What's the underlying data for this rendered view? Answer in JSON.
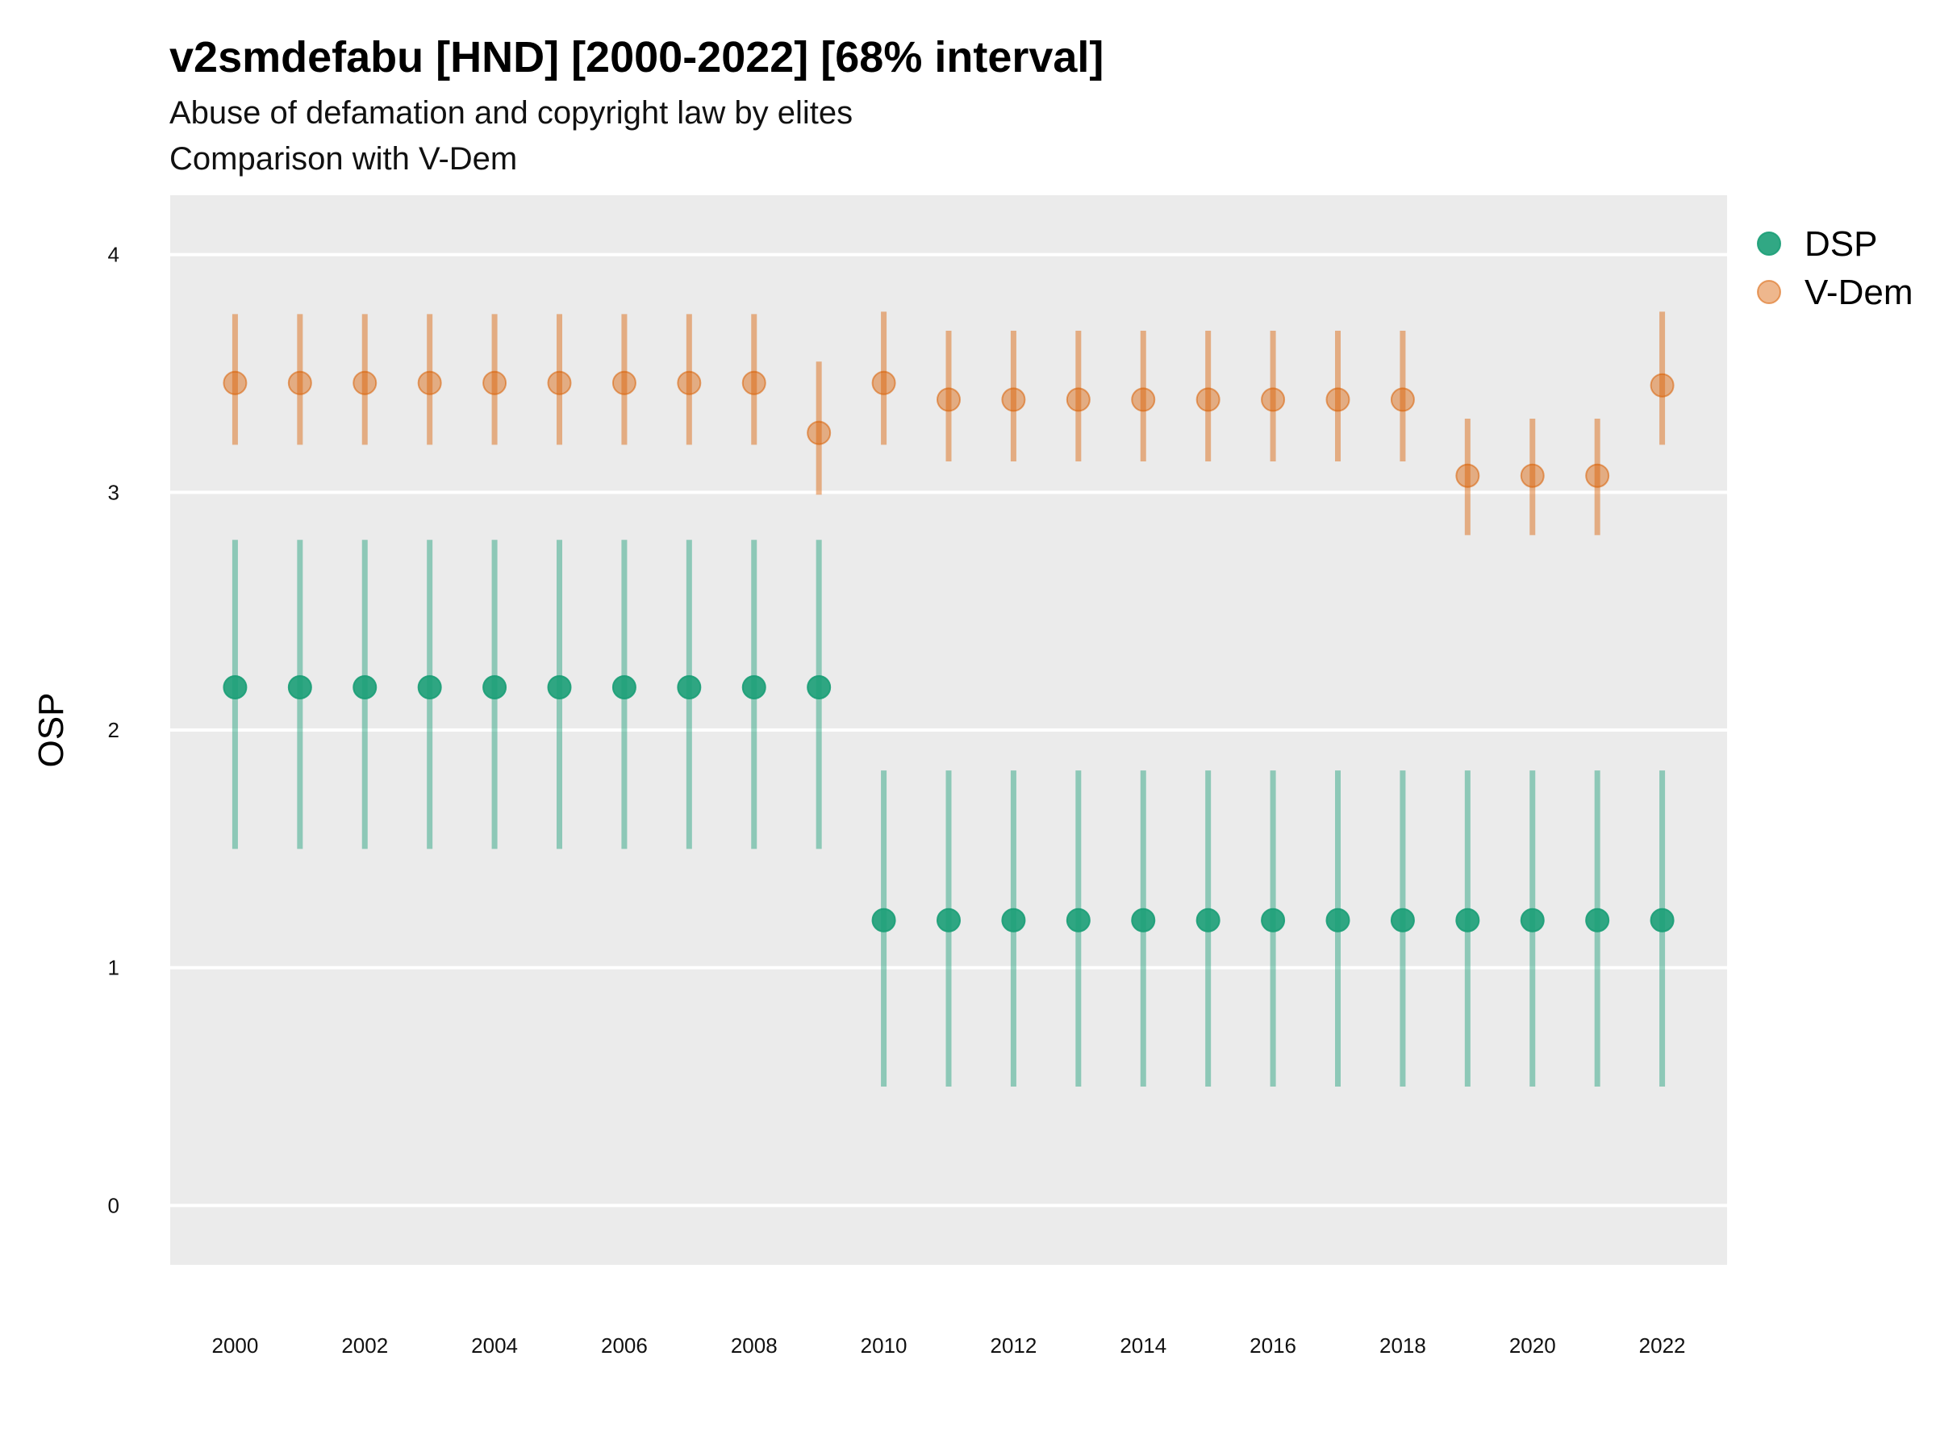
{
  "title": "v2smdefabu [HND] [2000-2022] [68% interval]",
  "subtitle_line1": "Abuse of defamation and copyright law by elites",
  "subtitle_line2": "Comparison with V-Dem",
  "chart_data": {
    "type": "scatter",
    "ylabel": "OSP",
    "xlabel": "",
    "ylim": [
      -0.25,
      4.25
    ],
    "yticks": [
      0,
      1,
      2,
      3,
      4
    ],
    "xticks": [
      2000,
      2002,
      2004,
      2006,
      2008,
      2010,
      2012,
      2014,
      2016,
      2018,
      2020,
      2022
    ],
    "x": [
      2000,
      2001,
      2002,
      2003,
      2004,
      2005,
      2006,
      2007,
      2008,
      2009,
      2010,
      2011,
      2012,
      2013,
      2014,
      2015,
      2016,
      2017,
      2018,
      2019,
      2020,
      2021,
      2022
    ],
    "legend_position": "right",
    "grid": true,
    "series": [
      {
        "name": "DSP",
        "color": "#1b9e77",
        "values": [
          2.18,
          2.18,
          2.18,
          2.18,
          2.18,
          2.18,
          2.18,
          2.18,
          2.18,
          2.18,
          1.2,
          1.2,
          1.2,
          1.2,
          1.2,
          1.2,
          1.2,
          1.2,
          1.2,
          1.2,
          1.2,
          1.2,
          1.2
        ],
        "lower": [
          1.5,
          1.5,
          1.5,
          1.5,
          1.5,
          1.5,
          1.5,
          1.5,
          1.5,
          1.5,
          0.5,
          0.5,
          0.5,
          0.5,
          0.5,
          0.5,
          0.5,
          0.5,
          0.5,
          0.5,
          0.5,
          0.5,
          0.5
        ],
        "upper": [
          2.8,
          2.8,
          2.8,
          2.8,
          2.8,
          2.8,
          2.8,
          2.8,
          2.8,
          2.8,
          1.83,
          1.83,
          1.83,
          1.83,
          1.83,
          1.83,
          1.83,
          1.83,
          1.83,
          1.83,
          1.83,
          1.83,
          1.83
        ]
      },
      {
        "name": "V-Dem",
        "color": "#d95f02",
        "values": [
          3.46,
          3.46,
          3.46,
          3.46,
          3.46,
          3.46,
          3.46,
          3.46,
          3.46,
          3.25,
          3.46,
          3.39,
          3.39,
          3.39,
          3.39,
          3.39,
          3.39,
          3.39,
          3.39,
          3.07,
          3.07,
          3.07,
          3.45
        ],
        "lower": [
          3.2,
          3.2,
          3.2,
          3.2,
          3.2,
          3.2,
          3.2,
          3.2,
          3.2,
          2.99,
          3.2,
          3.13,
          3.13,
          3.13,
          3.13,
          3.13,
          3.13,
          3.13,
          3.13,
          2.82,
          2.82,
          2.82,
          3.2
        ],
        "upper": [
          3.75,
          3.75,
          3.75,
          3.75,
          3.75,
          3.75,
          3.75,
          3.75,
          3.75,
          3.55,
          3.76,
          3.68,
          3.68,
          3.68,
          3.68,
          3.68,
          3.68,
          3.68,
          3.68,
          3.31,
          3.31,
          3.31,
          3.76
        ]
      }
    ]
  }
}
